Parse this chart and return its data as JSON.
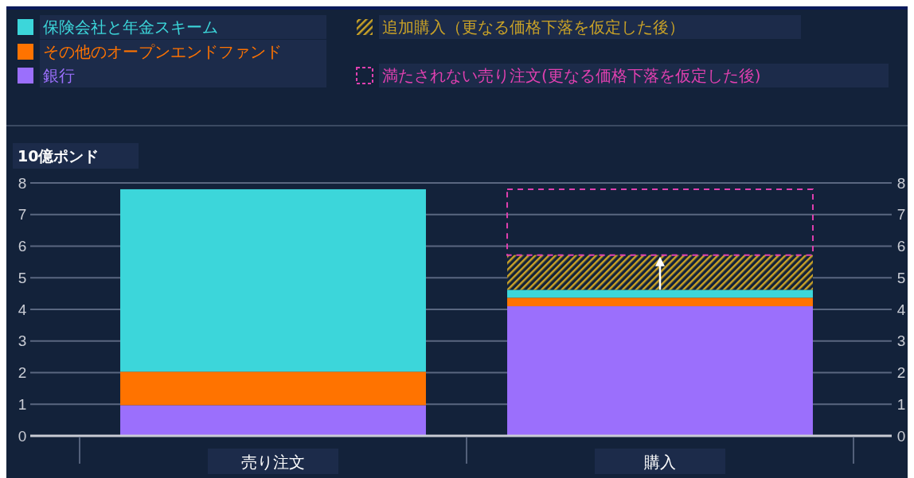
{
  "chart_data": {
    "type": "bar",
    "stacked": true,
    "ylabel": "10億ポンド",
    "categories": [
      "売り注文",
      "購入"
    ],
    "series": [
      {
        "name": "銀行",
        "color": "#9b6ffc",
        "values": [
          0.97,
          4.1
        ]
      },
      {
        "name": "その他のオープンエンドファンド",
        "color": "#ff7300",
        "values": [
          1.06,
          0.27
        ]
      },
      {
        "name": "保険会社と年金スキーム",
        "color": "#3cd6da",
        "values": [
          5.77,
          0.25
        ]
      },
      {
        "name": "追加購入（更なる価格下落を仮定した後）",
        "color": "#c9a227",
        "values": [
          null,
          1.1
        ]
      },
      {
        "name": "満たされない売り注文(更なる価格下落を仮定した後)",
        "color": "#e040b0",
        "line_style": "dashed",
        "values": [
          null,
          2.08
        ]
      }
    ],
    "ylim": [
      0,
      8
    ],
    "yticks": [
      0,
      1,
      2,
      3,
      4,
      5,
      6,
      7,
      8
    ],
    "y2lim": [
      0,
      8
    ],
    "y2ticks": [
      0,
      1,
      2,
      3,
      4,
      5,
      6,
      7,
      8
    ],
    "grid": "y",
    "legend": "top"
  }
}
